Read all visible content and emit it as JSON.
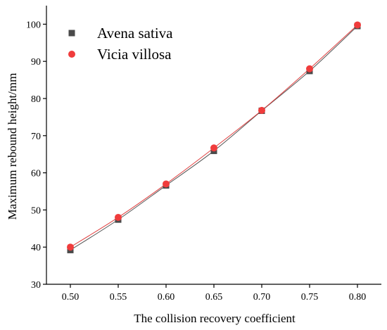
{
  "chart_data": {
    "type": "scatter",
    "xlabel": "The collision recovery coefficient",
    "ylabel": "Maximum rebound height/mm",
    "xlim": [
      0.475,
      0.825
    ],
    "ylim": [
      30,
      105
    ],
    "xticks": [
      "0.50",
      "0.55",
      "0.60",
      "0.65",
      "0.70",
      "0.75",
      "0.80"
    ],
    "yticks": [
      "30",
      "40",
      "50",
      "60",
      "70",
      "80",
      "90",
      "100"
    ],
    "grid": false,
    "legend_position": "top-left",
    "x": [
      0.5,
      0.55,
      0.6,
      0.65,
      0.7,
      0.75,
      0.8
    ],
    "series": [
      {
        "name": "Avena sativa",
        "marker": "square",
        "color": "#4a4a4a",
        "line_color": "#555555",
        "values": [
          39.2,
          47.4,
          56.6,
          65.9,
          76.7,
          87.4,
          99.5
        ]
      },
      {
        "name": "Vicia villosa",
        "marker": "circle",
        "color": "#f03c3c",
        "line_color": "#e04040",
        "values": [
          40.0,
          48.0,
          57.0,
          66.7,
          76.8,
          88.0,
          99.8
        ]
      }
    ]
  }
}
